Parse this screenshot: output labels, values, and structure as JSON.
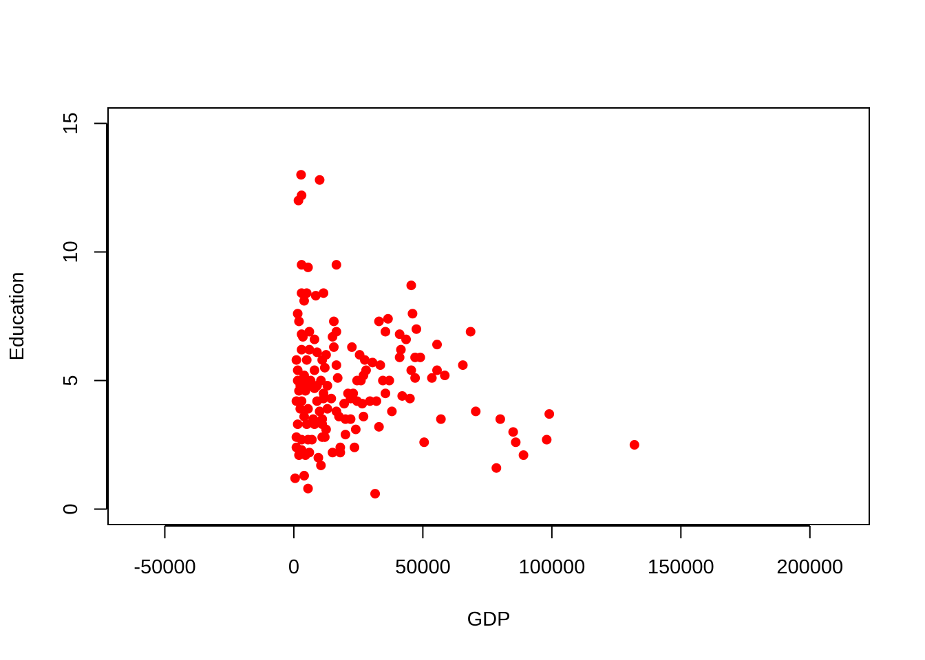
{
  "chart_data": {
    "type": "scatter",
    "title": "",
    "xlabel": "GDP",
    "ylabel": "Education",
    "xlim": [
      -72000,
      223000
    ],
    "ylim": [
      -0.6,
      15.6
    ],
    "x_ticks": [
      -50000,
      0,
      50000,
      100000,
      150000,
      200000
    ],
    "x_tick_labels": [
      "-50000",
      "0",
      "50000",
      "100000",
      "150000",
      "200000"
    ],
    "y_ticks": [
      0,
      5,
      10,
      15
    ],
    "y_tick_labels": [
      "0",
      "5",
      "10",
      "15"
    ],
    "grid": false,
    "legend": "none",
    "point_color": "#ff0000",
    "series": [
      {
        "points": [
          [
            2800,
            13.0
          ],
          [
            10000,
            12.8
          ],
          [
            3000,
            12.2
          ],
          [
            1800,
            12.0
          ],
          [
            3000,
            9.5
          ],
          [
            5500,
            9.4
          ],
          [
            16500,
            9.5
          ],
          [
            45500,
            8.7
          ],
          [
            3000,
            8.4
          ],
          [
            5000,
            8.4
          ],
          [
            8500,
            8.3
          ],
          [
            11500,
            8.4
          ],
          [
            4000,
            8.1
          ],
          [
            1500,
            7.6
          ],
          [
            46000,
            7.6
          ],
          [
            36500,
            7.4
          ],
          [
            2000,
            7.3
          ],
          [
            15500,
            7.3
          ],
          [
            33000,
            7.3
          ],
          [
            47500,
            7.0
          ],
          [
            6000,
            6.9
          ],
          [
            16500,
            6.9
          ],
          [
            35500,
            6.9
          ],
          [
            68500,
            6.9
          ],
          [
            3000,
            6.8
          ],
          [
            3500,
            6.7
          ],
          [
            15000,
            6.7
          ],
          [
            41000,
            6.8
          ],
          [
            43500,
            6.6
          ],
          [
            8000,
            6.6
          ],
          [
            12500,
            6.0
          ],
          [
            55500,
            6.4
          ],
          [
            3000,
            6.2
          ],
          [
            6000,
            6.2
          ],
          [
            9000,
            6.1
          ],
          [
            15500,
            6.3
          ],
          [
            22500,
            6.3
          ],
          [
            41500,
            6.2
          ],
          [
            1000,
            5.8
          ],
          [
            5000,
            5.8
          ],
          [
            11000,
            5.8
          ],
          [
            16500,
            5.6
          ],
          [
            25500,
            6.0
          ],
          [
            27500,
            5.8
          ],
          [
            30500,
            5.7
          ],
          [
            33500,
            5.6
          ],
          [
            41000,
            5.9
          ],
          [
            47000,
            5.9
          ],
          [
            49000,
            5.9
          ],
          [
            65500,
            5.6
          ],
          [
            1500,
            5.4
          ],
          [
            8000,
            5.4
          ],
          [
            12000,
            5.5
          ],
          [
            28000,
            5.4
          ],
          [
            45500,
            5.4
          ],
          [
            55500,
            5.4
          ],
          [
            4000,
            5.2
          ],
          [
            17000,
            5.1
          ],
          [
            27000,
            5.2
          ],
          [
            47000,
            5.1
          ],
          [
            53500,
            5.1
          ],
          [
            58500,
            5.2
          ],
          [
            1500,
            5.0
          ],
          [
            3500,
            5.0
          ],
          [
            6500,
            5.0
          ],
          [
            10500,
            5.0
          ],
          [
            24500,
            5.0
          ],
          [
            34500,
            5.0
          ],
          [
            37000,
            5.0
          ],
          [
            2500,
            4.8
          ],
          [
            5000,
            4.8
          ],
          [
            9000,
            4.8
          ],
          [
            13000,
            4.8
          ],
          [
            26000,
            5.0
          ],
          [
            2000,
            4.6
          ],
          [
            4500,
            4.6
          ],
          [
            8000,
            4.7
          ],
          [
            11500,
            4.5
          ],
          [
            21000,
            4.5
          ],
          [
            23000,
            4.5
          ],
          [
            35500,
            4.5
          ],
          [
            1000,
            4.2
          ],
          [
            3000,
            4.2
          ],
          [
            9000,
            4.2
          ],
          [
            11500,
            4.3
          ],
          [
            14500,
            4.3
          ],
          [
            19500,
            4.1
          ],
          [
            22000,
            4.3
          ],
          [
            24500,
            4.2
          ],
          [
            26500,
            4.1
          ],
          [
            29500,
            4.2
          ],
          [
            32000,
            4.2
          ],
          [
            42000,
            4.4
          ],
          [
            45000,
            4.3
          ],
          [
            2500,
            3.9
          ],
          [
            5500,
            3.9
          ],
          [
            10000,
            3.8
          ],
          [
            13000,
            3.9
          ],
          [
            16500,
            3.8
          ],
          [
            4000,
            3.6
          ],
          [
            7500,
            3.5
          ],
          [
            11000,
            3.5
          ],
          [
            17500,
            3.6
          ],
          [
            20000,
            3.5
          ],
          [
            22000,
            3.5
          ],
          [
            27000,
            3.6
          ],
          [
            38000,
            3.8
          ],
          [
            57000,
            3.5
          ],
          [
            70500,
            3.8
          ],
          [
            80000,
            3.5
          ],
          [
            99000,
            3.7
          ],
          [
            1500,
            3.3
          ],
          [
            5000,
            3.3
          ],
          [
            8000,
            3.3
          ],
          [
            11000,
            3.3
          ],
          [
            12500,
            3.1
          ],
          [
            24000,
            3.1
          ],
          [
            33000,
            3.2
          ],
          [
            1000,
            2.8
          ],
          [
            3000,
            2.7
          ],
          [
            5500,
            2.7
          ],
          [
            7000,
            2.7
          ],
          [
            11000,
            2.8
          ],
          [
            12000,
            2.8
          ],
          [
            20000,
            2.9
          ],
          [
            50500,
            2.6
          ],
          [
            85000,
            3.0
          ],
          [
            86000,
            2.6
          ],
          [
            98000,
            2.7
          ],
          [
            1000,
            2.4
          ],
          [
            3000,
            2.3
          ],
          [
            6000,
            2.2
          ],
          [
            15000,
            2.2
          ],
          [
            18000,
            2.4
          ],
          [
            18000,
            2.2
          ],
          [
            23500,
            2.4
          ],
          [
            132000,
            2.5
          ],
          [
            2000,
            2.1
          ],
          [
            4500,
            2.1
          ],
          [
            9500,
            2.0
          ],
          [
            89000,
            2.1
          ],
          [
            10500,
            1.7
          ],
          [
            78500,
            1.6
          ],
          [
            500,
            1.2
          ],
          [
            4000,
            1.3
          ],
          [
            5500,
            0.8
          ],
          [
            31500,
            0.6
          ]
        ]
      }
    ]
  }
}
